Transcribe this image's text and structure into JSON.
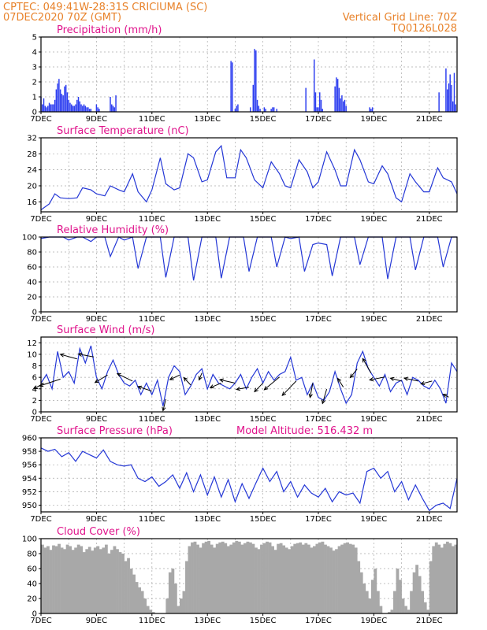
{
  "header": {
    "left_line1": "CPTEC:   049:41W-28:31S   CRICIUMA (SC)",
    "left_line2": "07DEC2020 70Z (GMT)",
    "right_line1": "Vertical Grid Line: 70Z",
    "right_line2": "TQ0126L028"
  },
  "colors": {
    "series": "#2437d6",
    "bars": "#2c3df0",
    "cloud": "#a8a8a8",
    "title": "#e0148c",
    "header": "#e8822a"
  },
  "chart_data": [
    {
      "id": "precipitation",
      "type": "bar",
      "title": "Precipitation (mm/h)",
      "x_range": [
        7,
        22
      ],
      "ylim": [
        0,
        5
      ],
      "yticks": [
        "0",
        "1",
        "2",
        "3",
        "4",
        "5"
      ],
      "xticks": [
        "7DEC",
        "9DEC",
        "11DEC",
        "13DEC",
        "15DEC",
        "17DEC",
        "19DEC",
        "21DEC"
      ],
      "x": [
        7.0,
        7.05,
        7.1,
        7.15,
        7.2,
        7.25,
        7.3,
        7.35,
        7.4,
        7.45,
        7.5,
        7.55,
        7.6,
        7.65,
        7.7,
        7.75,
        7.8,
        7.85,
        7.9,
        7.95,
        8.0,
        8.05,
        8.1,
        8.15,
        8.2,
        8.25,
        8.3,
        8.35,
        8.4,
        8.45,
        8.5,
        8.55,
        8.6,
        8.65,
        8.7,
        8.75,
        8.8,
        9.0,
        9.05,
        9.1,
        9.5,
        9.55,
        9.6,
        9.65,
        9.7,
        13.85,
        13.9,
        14.0,
        14.05,
        14.1,
        14.55,
        14.65,
        14.7,
        14.75,
        14.8,
        14.85,
        14.9,
        15.05,
        15.1,
        15.3,
        15.35,
        15.4,
        15.5,
        16.55,
        16.85,
        16.9,
        16.95,
        17.0,
        17.05,
        17.1,
        17.15,
        17.6,
        17.65,
        17.7,
        17.75,
        17.8,
        17.85,
        17.9,
        17.95,
        18.0,
        18.85,
        18.9,
        18.95,
        21.35,
        21.6,
        21.65,
        21.7,
        21.75,
        21.8,
        21.85,
        21.9,
        21.95
      ],
      "values": [
        1.0,
        0.5,
        0.9,
        0.4,
        0.3,
        0.4,
        0.6,
        0.5,
        0.5,
        0.5,
        0.8,
        1.5,
        1.9,
        2.2,
        1.5,
        1.2,
        1.1,
        1.7,
        1.8,
        1.3,
        0.8,
        0.6,
        0.5,
        0.4,
        0.4,
        0.5,
        0.8,
        1.0,
        0.7,
        0.5,
        0.4,
        0.5,
        0.4,
        0.3,
        0.3,
        0.2,
        0.2,
        0.5,
        0.3,
        0.2,
        1.0,
        0.5,
        0.4,
        0.3,
        1.1,
        3.4,
        3.3,
        0.2,
        0.4,
        0.5,
        0.3,
        1.8,
        4.2,
        4.1,
        0.8,
        0.4,
        0.2,
        0.3,
        0.2,
        0.2,
        0.3,
        0.3,
        0.2,
        1.6,
        3.5,
        1.3,
        0.3,
        0.3,
        1.3,
        0.8,
        0.2,
        1.7,
        2.3,
        2.2,
        1.6,
        0.9,
        1.1,
        0.7,
        0.8,
        0.4,
        0.3,
        0.2,
        0.3,
        1.3,
        2.9,
        1.5,
        1.9,
        2.5,
        1.8,
        0.7,
        2.6,
        0.5
      ]
    },
    {
      "id": "temperature",
      "type": "line",
      "title": "Surface Temperature (nC)",
      "x_range": [
        7,
        22
      ],
      "ylim": [
        13.5,
        32
      ],
      "yticks": [
        "16",
        "20",
        "24",
        "28",
        "32"
      ],
      "xticks": [
        "7DEC",
        "9DEC",
        "11DEC",
        "13DEC",
        "15DEC",
        "17DEC",
        "19DEC",
        "21DEC"
      ],
      "x": [
        7.0,
        7.3,
        7.5,
        7.7,
        8.0,
        8.3,
        8.5,
        8.8,
        9.0,
        9.3,
        9.5,
        9.8,
        10.0,
        10.3,
        10.5,
        10.8,
        11.0,
        11.3,
        11.5,
        11.8,
        12.0,
        12.3,
        12.5,
        12.8,
        13.0,
        13.3,
        13.5,
        13.7,
        14.0,
        14.2,
        14.4,
        14.7,
        15.0,
        15.3,
        15.6,
        15.8,
        16.0,
        16.3,
        16.6,
        16.8,
        17.0,
        17.3,
        17.6,
        17.8,
        18.0,
        18.3,
        18.5,
        18.8,
        19.0,
        19.3,
        19.5,
        19.8,
        20.0,
        20.3,
        20.5,
        20.8,
        21.0,
        21.3,
        21.5,
        21.8,
        22.0
      ],
      "values": [
        14.0,
        15.5,
        18.0,
        17.0,
        16.8,
        17.0,
        19.5,
        19.0,
        18.0,
        17.5,
        20.0,
        19.0,
        18.5,
        23.0,
        18.5,
        16.0,
        19.0,
        27.0,
        20.5,
        19.0,
        19.5,
        28.0,
        27.0,
        21.0,
        21.5,
        28.5,
        30.0,
        22.0,
        22.0,
        29.0,
        27.0,
        21.5,
        19.5,
        26.0,
        23.0,
        20.0,
        19.5,
        26.5,
        23.5,
        19.5,
        21.0,
        28.5,
        24.0,
        20.0,
        20.0,
        29.0,
        26.5,
        21.0,
        20.5,
        25.0,
        23.0,
        17.0,
        16.0,
        23.0,
        21.0,
        18.5,
        18.5,
        24.5,
        22.0,
        21.0,
        18.0
      ]
    },
    {
      "id": "humidity",
      "type": "line",
      "title": "Relative Humidity (%)",
      "x_range": [
        7,
        22
      ],
      "ylim": [
        0,
        100
      ],
      "yticks": [
        "0",
        "20",
        "40",
        "60",
        "80",
        "100"
      ],
      "xticks": [
        "7DEC",
        "9DEC",
        "11DEC",
        "13DEC",
        "15DEC",
        "17DEC",
        "19DEC",
        "21DEC"
      ],
      "x": [
        7.0,
        7.3,
        7.5,
        7.8,
        8.0,
        8.3,
        8.5,
        8.8,
        9.0,
        9.3,
        9.5,
        9.8,
        10.0,
        10.3,
        10.5,
        10.8,
        11.0,
        11.3,
        11.5,
        11.8,
        12.0,
        12.3,
        12.5,
        12.8,
        13.0,
        13.3,
        13.5,
        13.8,
        14.0,
        14.3,
        14.5,
        14.8,
        15.0,
        15.3,
        15.5,
        15.8,
        16.0,
        16.3,
        16.5,
        16.8,
        17.0,
        17.3,
        17.5,
        17.8,
        18.0,
        18.3,
        18.5,
        18.8,
        19.0,
        19.3,
        19.5,
        19.8,
        20.0,
        20.3,
        20.5,
        20.8,
        21.0,
        21.3,
        21.5,
        21.8,
        22.0
      ],
      "values": [
        98.0,
        100.0,
        100.0,
        100.0,
        96.0,
        100.0,
        100.0,
        94.0,
        100.0,
        100.0,
        74.0,
        100.0,
        96.0,
        100.0,
        58.0,
        100.0,
        100.0,
        100.0,
        46.0,
        100.0,
        100.0,
        100.0,
        42.0,
        100.0,
        100.0,
        100.0,
        45.0,
        100.0,
        100.0,
        100.0,
        54.0,
        100.0,
        100.0,
        100.0,
        60.0,
        100.0,
        98.0,
        100.0,
        54.0,
        90.0,
        92.0,
        90.0,
        48.0,
        100.0,
        100.0,
        100.0,
        63.0,
        100.0,
        100.0,
        100.0,
        44.0,
        100.0,
        100.0,
        100.0,
        56.0,
        100.0,
        100.0,
        100.0,
        60.0,
        100.0,
        100.0
      ]
    },
    {
      "id": "wind",
      "type": "line",
      "title": "Surface Wind (m/s)",
      "x_range": [
        7,
        22
      ],
      "ylim": [
        0,
        13
      ],
      "yticks": [
        "0",
        "2",
        "4",
        "6",
        "8",
        "10",
        "12"
      ],
      "xticks": [
        "7DEC",
        "9DEC",
        "11DEC",
        "13DEC",
        "15DEC",
        "17DEC",
        "19DEC",
        "21DEC"
      ],
      "x": [
        7.0,
        7.2,
        7.4,
        7.6,
        7.8,
        8.0,
        8.2,
        8.4,
        8.6,
        8.8,
        9.0,
        9.2,
        9.4,
        9.6,
        9.8,
        10.0,
        10.2,
        10.4,
        10.6,
        10.8,
        11.0,
        11.2,
        11.4,
        11.6,
        11.8,
        12.0,
        12.2,
        12.4,
        12.6,
        12.8,
        13.0,
        13.2,
        13.4,
        13.6,
        13.8,
        14.0,
        14.2,
        14.4,
        14.6,
        14.8,
        15.0,
        15.2,
        15.4,
        15.6,
        15.8,
        16.0,
        16.2,
        16.4,
        16.6,
        16.8,
        17.0,
        17.2,
        17.4,
        17.6,
        17.8,
        18.0,
        18.2,
        18.4,
        18.6,
        18.8,
        19.0,
        19.2,
        19.4,
        19.6,
        19.8,
        20.0,
        20.2,
        20.4,
        20.6,
        20.8,
        21.0,
        21.2,
        21.4,
        21.6,
        21.8,
        22.0
      ],
      "values": [
        5.0,
        6.5,
        4.0,
        10.5,
        6.0,
        7.0,
        5.0,
        11.0,
        8.5,
        11.5,
        6.0,
        4.0,
        7.0,
        9.0,
        6.5,
        5.0,
        4.5,
        5.5,
        3.0,
        5.0,
        3.0,
        5.5,
        1.0,
        6.0,
        8.0,
        7.0,
        3.0,
        4.5,
        6.5,
        7.5,
        4.0,
        6.5,
        5.0,
        4.5,
        4.0,
        5.0,
        6.5,
        4.0,
        6.0,
        7.5,
        5.0,
        7.0,
        5.5,
        6.5,
        7.0,
        9.5,
        5.5,
        6.0,
        3.0,
        5.0,
        2.5,
        2.0,
        3.5,
        7.0,
        4.0,
        1.5,
        3.0,
        8.5,
        10.5,
        7.5,
        6.0,
        4.5,
        6.5,
        3.5,
        5.0,
        5.5,
        3.0,
        6.0,
        5.5,
        4.5,
        4.0,
        5.5,
        4.0,
        1.5,
        8.5,
        7.0
      ],
      "arrows": [
        {
          "x": 7.1,
          "dx": -0.35,
          "dy": -1.0
        },
        {
          "x": 7.7,
          "dx": -0.75,
          "dy": -1.2
        },
        {
          "x": 8.3,
          "dx": -0.6,
          "dy": 0.8
        },
        {
          "x": 8.9,
          "dx": -0.55,
          "dy": 0.5
        },
        {
          "x": 9.4,
          "dx": -0.45,
          "dy": -1.3
        },
        {
          "x": 10.3,
          "dx": -0.55,
          "dy": 1.3
        },
        {
          "x": 11.0,
          "dx": -0.5,
          "dy": 0.8
        },
        {
          "x": 11.5,
          "dx": -0.1,
          "dy": -2.0
        },
        {
          "x": 12.0,
          "dx": -0.35,
          "dy": -0.8
        },
        {
          "x": 12.4,
          "dx": -0.25,
          "dy": 1.3
        },
        {
          "x": 12.8,
          "dx": -0.1,
          "dy": -1.2
        },
        {
          "x": 13.5,
          "dx": -0.4,
          "dy": -0.8
        },
        {
          "x": 14.0,
          "dx": -0.55,
          "dy": 0.6
        },
        {
          "x": 14.5,
          "dx": -0.45,
          "dy": -0.4
        },
        {
          "x": 15.0,
          "dx": -0.3,
          "dy": -1.5
        },
        {
          "x": 15.6,
          "dx": -0.55,
          "dy": -2.2
        },
        {
          "x": 16.2,
          "dx": -0.5,
          "dy": -2.5
        },
        {
          "x": 16.8,
          "dx": -0.1,
          "dy": -2.5
        },
        {
          "x": 17.3,
          "dx": -0.15,
          "dy": -2.5
        },
        {
          "x": 17.9,
          "dx": -0.2,
          "dy": 1.5
        },
        {
          "x": 18.4,
          "dx": -0.25,
          "dy": -1.5
        },
        {
          "x": 18.9,
          "dx": -0.3,
          "dy": 2.5
        },
        {
          "x": 19.4,
          "dx": -0.55,
          "dy": -0.5
        },
        {
          "x": 20.0,
          "dx": -0.4,
          "dy": 0.5
        },
        {
          "x": 20.6,
          "dx": -0.5,
          "dy": 0.5
        },
        {
          "x": 21.1,
          "dx": -0.4,
          "dy": -0.5
        },
        {
          "x": 21.7,
          "dx": -0.2,
          "dy": 0.5
        }
      ]
    },
    {
      "id": "pressure",
      "type": "line",
      "title": "Surface Pressure (hPa)",
      "annotation": "Model Altitude: 516.432 m",
      "x_range": [
        7,
        22
      ],
      "ylim": [
        949,
        960
      ],
      "yticks": [
        "950",
        "952",
        "954",
        "956",
        "958",
        "960"
      ],
      "xticks": [
        "7DEC",
        "9DEC",
        "11DEC",
        "13DEC",
        "15DEC",
        "17DEC",
        "19DEC",
        "21DEC"
      ],
      "x": [
        7.0,
        7.25,
        7.5,
        7.75,
        8.0,
        8.25,
        8.5,
        8.75,
        9.0,
        9.25,
        9.5,
        9.75,
        10.0,
        10.25,
        10.5,
        10.75,
        11.0,
        11.25,
        11.5,
        11.75,
        12.0,
        12.25,
        12.5,
        12.75,
        13.0,
        13.25,
        13.5,
        13.75,
        14.0,
        14.25,
        14.5,
        14.75,
        15.0,
        15.25,
        15.5,
        15.75,
        16.0,
        16.25,
        16.5,
        16.75,
        17.0,
        17.25,
        17.5,
        17.75,
        18.0,
        18.25,
        18.5,
        18.75,
        19.0,
        19.25,
        19.5,
        19.75,
        20.0,
        20.25,
        20.5,
        20.75,
        21.0,
        21.25,
        21.5,
        21.75,
        22.0
      ],
      "values": [
        958.5,
        958.0,
        958.3,
        957.2,
        957.8,
        956.5,
        958.0,
        957.5,
        957.0,
        958.2,
        956.5,
        956.0,
        955.8,
        956.0,
        954.0,
        953.5,
        954.2,
        952.8,
        953.5,
        954.5,
        952.5,
        954.8,
        952.0,
        954.5,
        951.5,
        954.2,
        951.2,
        953.8,
        950.5,
        953.2,
        951.0,
        953.3,
        955.5,
        953.5,
        955.0,
        952.0,
        953.5,
        951.2,
        953.0,
        951.8,
        951.2,
        952.5,
        950.5,
        952.0,
        951.5,
        951.8,
        950.3,
        955.0,
        955.5,
        954.0,
        955.0,
        952.0,
        953.5,
        950.8,
        953.0,
        951.0,
        949.2,
        950.0,
        950.3,
        949.5,
        954.0
      ]
    },
    {
      "id": "cloud",
      "type": "area",
      "title": "Cloud Cover (%)",
      "x_range": [
        7,
        22
      ],
      "ylim": [
        0,
        100
      ],
      "yticks": [
        "0",
        "20",
        "40",
        "60",
        "80",
        "100"
      ],
      "xticks": [
        "7DEC",
        "9DEC",
        "11DEC",
        "13DEC",
        "15DEC",
        "17DEC",
        "19DEC",
        "21DEC"
      ],
      "x": [
        7.0,
        7.1,
        7.2,
        7.3,
        7.4,
        7.5,
        7.6,
        7.7,
        7.8,
        7.9,
        8.0,
        8.1,
        8.2,
        8.3,
        8.4,
        8.5,
        8.6,
        8.7,
        8.8,
        8.9,
        9.0,
        9.1,
        9.2,
        9.3,
        9.4,
        9.5,
        9.6,
        9.7,
        9.8,
        9.9,
        10.0,
        10.1,
        10.2,
        10.3,
        10.4,
        10.5,
        10.6,
        10.7,
        10.8,
        10.9,
        11.0,
        11.1,
        11.2,
        11.3,
        11.4,
        11.5,
        11.6,
        11.7,
        11.8,
        11.9,
        12.0,
        12.1,
        12.2,
        12.3,
        12.4,
        12.5,
        12.6,
        12.7,
        12.8,
        12.9,
        13.0,
        13.1,
        13.2,
        13.3,
        13.4,
        13.5,
        13.6,
        13.7,
        13.8,
        13.9,
        14.0,
        14.1,
        14.2,
        14.3,
        14.4,
        14.5,
        14.6,
        14.7,
        14.8,
        14.9,
        15.0,
        15.1,
        15.2,
        15.3,
        15.4,
        15.5,
        15.6,
        15.7,
        15.8,
        15.9,
        16.0,
        16.1,
        16.2,
        16.3,
        16.4,
        16.5,
        16.6,
        16.7,
        16.8,
        16.9,
        17.0,
        17.1,
        17.2,
        17.3,
        17.4,
        17.5,
        17.6,
        17.7,
        17.8,
        17.9,
        18.0,
        18.1,
        18.2,
        18.3,
        18.4,
        18.5,
        18.6,
        18.7,
        18.8,
        18.9,
        19.0,
        19.1,
        19.2,
        19.3,
        19.4,
        19.5,
        19.6,
        19.7,
        19.8,
        19.9,
        20.0,
        20.1,
        20.2,
        20.3,
        20.4,
        20.5,
        20.6,
        20.7,
        20.8,
        20.9,
        21.0,
        21.1,
        21.2,
        21.3,
        21.4,
        21.5,
        21.6,
        21.7,
        21.8,
        21.9
      ],
      "values": [
        92,
        88,
        90,
        85,
        91,
        90,
        93,
        88,
        86,
        92,
        90,
        85,
        88,
        92,
        90,
        82,
        86,
        89,
        84,
        88,
        90,
        86,
        88,
        92,
        80,
        85,
        90,
        86,
        82,
        80,
        70,
        74,
        60,
        52,
        42,
        35,
        30,
        20,
        10,
        5,
        2,
        0,
        0,
        0,
        0,
        20,
        55,
        60,
        40,
        10,
        20,
        30,
        70,
        90,
        95,
        96,
        92,
        88,
        94,
        96,
        97,
        92,
        88,
        93,
        95,
        96,
        94,
        90,
        92,
        95,
        97,
        96,
        92,
        94,
        96,
        95,
        93,
        88,
        86,
        92,
        94,
        96,
        95,
        90,
        85,
        93,
        94,
        91,
        88,
        86,
        90,
        93,
        94,
        95,
        92,
        94,
        92,
        88,
        90,
        93,
        95,
        96,
        92,
        90,
        88,
        84,
        86,
        90,
        92,
        94,
        95,
        93,
        92,
        88,
        70,
        55,
        40,
        30,
        20,
        45,
        60,
        30,
        10,
        0,
        0,
        2,
        5,
        30,
        60,
        45,
        20,
        10,
        5,
        30,
        55,
        65,
        50,
        30,
        15,
        5,
        70,
        90,
        95,
        92,
        88,
        93,
        96,
        94,
        90,
        92
      ]
    }
  ]
}
